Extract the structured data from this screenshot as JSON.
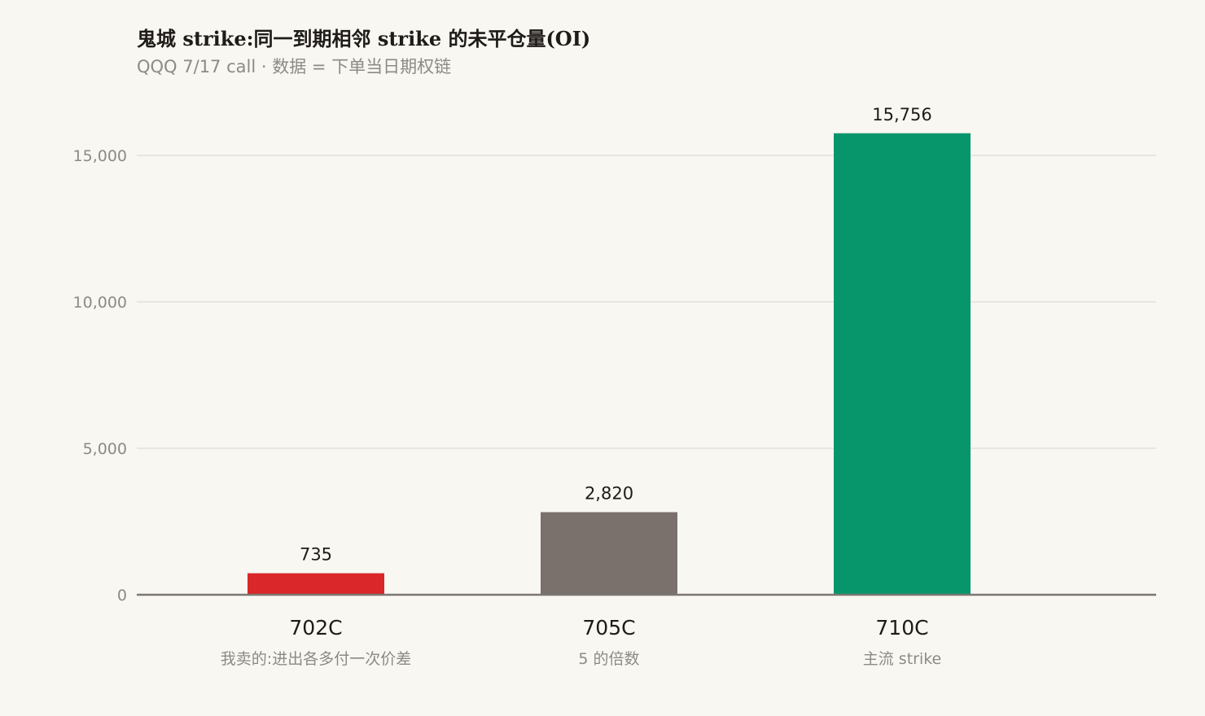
{
  "title": "鬼城 strike:同一到期相邻 strike 的未平仓量(OI)",
  "subtitle": "QQQ 7/17 call · 数据 = 下单当日期权链",
  "chart_data": {
    "type": "bar",
    "title": "鬼城 strike:同一到期相邻 strike 的未平仓量(OI)",
    "subtitle": "QQQ 7/17 call · 数据 = 下单当日期权链",
    "categories": [
      "702C",
      "705C",
      "710C"
    ],
    "category_notes": [
      "我卖的:进出各多付一次价差",
      "5 的倍数",
      "主流 strike"
    ],
    "values": [
      735,
      2820,
      15756
    ],
    "value_labels": [
      "735",
      "2,820",
      "15,756"
    ],
    "colors": [
      "#d9272a",
      "#7a716c",
      "#07966b"
    ],
    "ylim": [
      0,
      16500
    ],
    "yticks": [
      0,
      5000,
      10000,
      15000
    ],
    "ytick_labels": [
      "0",
      "5,000",
      "10,000",
      "15,000"
    ],
    "grid": true,
    "xlabel": "",
    "ylabel": ""
  }
}
